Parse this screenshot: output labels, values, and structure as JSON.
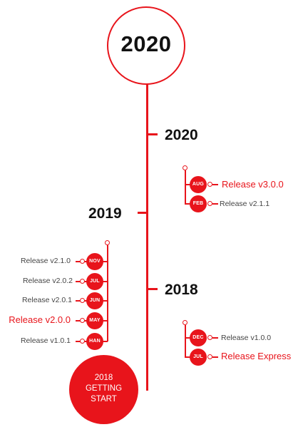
{
  "top_year": "2020",
  "start_label": "2018\nGETTING\nSTART",
  "years": {
    "y2020": "2020",
    "y2019": "2019",
    "y2018": "2018"
  },
  "groups": {
    "g2020": [
      {
        "month": "AUG",
        "label": "Release v3.0.0",
        "highlight": true
      },
      {
        "month": "FEB",
        "label": "Release v2.1.1",
        "highlight": false
      }
    ],
    "g2019": [
      {
        "month": "NOV",
        "label": "Release v2.1.0",
        "highlight": false
      },
      {
        "month": "JUL",
        "label": "Release v2.0.2",
        "highlight": false
      },
      {
        "month": "JUN",
        "label": "Release v2.0.1",
        "highlight": false
      },
      {
        "month": "MAY",
        "label": "Release v2.0.0",
        "highlight": true
      },
      {
        "month": "HAN",
        "label": "Release v1.0.1",
        "highlight": false
      }
    ],
    "g2018": [
      {
        "month": "DEC",
        "label": "Release v1.0.0",
        "highlight": false
      },
      {
        "month": "JUL",
        "label": "Release Express",
        "highlight": true
      }
    ]
  },
  "colors": {
    "accent": "#e8141b",
    "text": "#111111",
    "muted": "#444444"
  }
}
